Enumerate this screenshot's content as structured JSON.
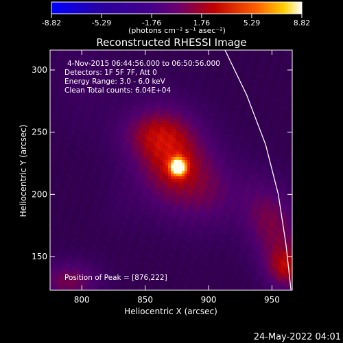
{
  "colorbar": {
    "tick_labels": [
      "-8.82",
      "-5.29",
      "-1.76",
      "1.76",
      "5.29",
      "8.82"
    ],
    "unit_label": "(photons cm⁻² s⁻¹ asec⁻²)",
    "range": [
      -8.82,
      8.82
    ]
  },
  "chart_data": {
    "type": "heatmap",
    "title": "Reconstructed RHESSI Image",
    "xlabel": "Heliocentric X (arcsec)",
    "ylabel": "Heliocentric Y (arcsec)",
    "xlim": [
      775,
      966
    ],
    "ylim": [
      123,
      316
    ],
    "x_ticks": [
      800,
      850,
      900,
      950
    ],
    "y_ticks": [
      150,
      200,
      250,
      300
    ],
    "peak": [
      876,
      222
    ],
    "annotations": [
      "4-Nov-2015 06:44:56.000 to 06:50:56.000",
      "Detectors: 1F 5F 7F, Att 0",
      "Energy Range: 3.0 - 6.0 keV",
      "Clean     Total counts: 6.04E+04",
      "Position of Peak = [876,222]"
    ],
    "limb": [
      [
        913,
        316
      ],
      [
        930,
        280
      ],
      [
        945,
        240
      ],
      [
        955,
        200
      ],
      [
        961,
        160
      ],
      [
        965,
        123
      ]
    ],
    "colormap": [
      "#0000ff",
      "#2a003a",
      "#5a0078",
      "#b00000",
      "#ff3a00",
      "#ffd000",
      "#ffffff"
    ]
  },
  "footer": {
    "timestamp": "24-May-2022 04:01"
  }
}
